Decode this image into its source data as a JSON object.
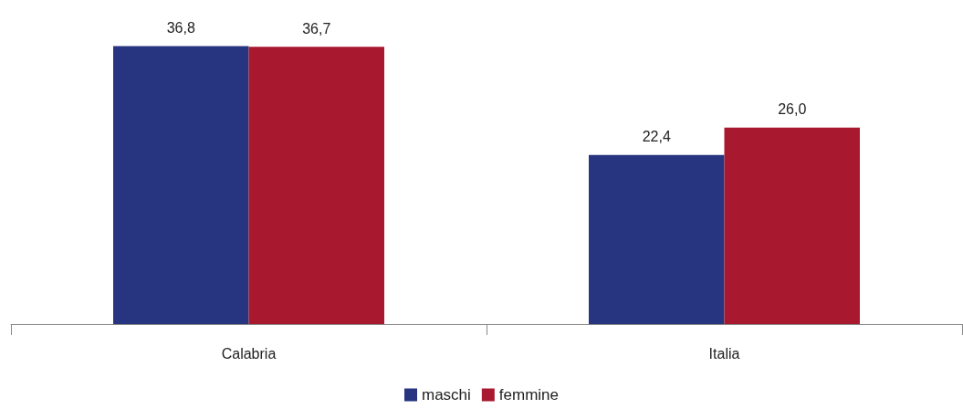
{
  "chart_data": {
    "type": "bar",
    "categories": [
      "Calabria",
      "Italia"
    ],
    "series": [
      {
        "name": "maschi",
        "color": "#27347f",
        "values": [
          36.8,
          22.4
        ],
        "value_labels": [
          "36,8",
          "22,4"
        ]
      },
      {
        "name": "femmine",
        "color": "#a8182f",
        "values": [
          36.7,
          26.0
        ],
        "value_labels": [
          "36,7",
          "26,0"
        ]
      }
    ],
    "legend": "bottom"
  }
}
